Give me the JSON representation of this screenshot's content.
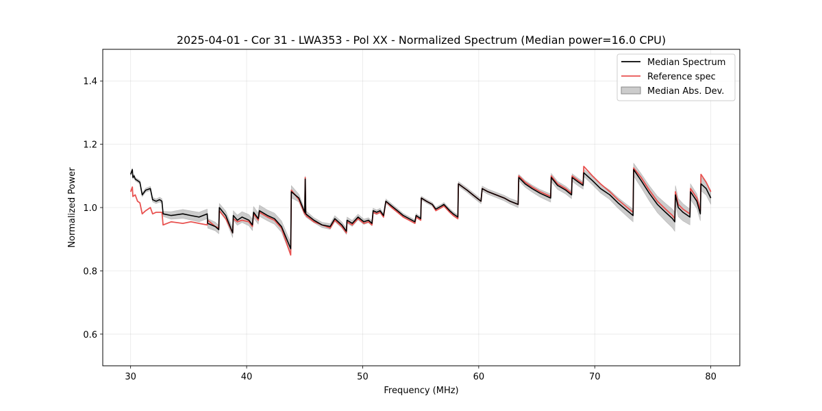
{
  "chart_data": {
    "type": "line",
    "title": "2025-04-01 - Cor 31 - LWA353 - Pol XX - Normalized Spectrum (Median power=16.0 CPU)",
    "xlabel": "Frequency (MHz)",
    "ylabel": "Normalized Power",
    "xlim": [
      27.6,
      82.5
    ],
    "ylim": [
      0.5,
      1.5
    ],
    "xticks": [
      30,
      40,
      50,
      60,
      70,
      80
    ],
    "yticks": [
      0.6,
      0.8,
      1.0,
      1.2,
      1.4
    ],
    "xtick_labels": [
      "30",
      "40",
      "50",
      "60",
      "70",
      "80"
    ],
    "ytick_labels": [
      "0.6",
      "0.8",
      "1.0",
      "1.2",
      "1.4"
    ],
    "grid": true,
    "legend_position": "top-right",
    "colors": {
      "median": "#000000",
      "reference": "#e8514f",
      "mad_band": "#999999"
    },
    "series": [
      {
        "name": "Median Spectrum",
        "x": [
          30.0,
          30.15,
          30.2,
          30.3,
          30.4,
          30.6,
          30.8,
          31.0,
          31.3,
          31.7,
          31.9,
          32.2,
          32.5,
          32.7,
          32.8,
          33.5,
          34.5,
          35.2,
          35.9,
          36.6,
          36.65,
          37.3,
          37.6,
          37.65,
          38.2,
          38.8,
          38.85,
          39.2,
          39.6,
          40.2,
          40.5,
          40.6,
          41.0,
          41.1,
          41.8,
          42.4,
          43.0,
          43.8,
          43.85,
          44.5,
          45.0,
          45.05,
          45.1,
          45.8,
          46.5,
          47.2,
          47.6,
          48.2,
          48.6,
          48.65,
          49.1,
          49.6,
          50.1,
          50.5,
          50.8,
          50.9,
          51.2,
          51.5,
          51.8,
          52.0,
          52.5,
          53.0,
          53.5,
          54.0,
          54.5,
          54.6,
          55.0,
          55.05,
          55.5,
          56.0,
          56.3,
          56.8,
          57.0,
          57.5,
          57.8,
          58.2,
          58.25,
          59.0,
          59.5,
          60.2,
          60.3,
          60.8,
          61.5,
          62.2,
          62.7,
          63.4,
          63.45,
          64.0,
          64.6,
          65.3,
          66.2,
          66.25,
          66.8,
          67.5,
          68.0,
          68.05,
          68.6,
          69.0,
          69.05,
          69.8,
          70.5,
          71.3,
          72.0,
          72.8,
          73.3,
          73.35,
          74.0,
          74.7,
          75.4,
          76.1,
          76.7,
          76.9,
          76.95,
          77.2,
          77.6,
          78.2,
          78.25,
          78.8,
          79.1,
          79.15,
          79.6,
          80.0
        ],
        "values": [
          1.105,
          1.12,
          1.095,
          1.1,
          1.09,
          1.085,
          1.08,
          1.04,
          1.055,
          1.06,
          1.025,
          1.02,
          1.025,
          1.02,
          0.98,
          0.975,
          0.98,
          0.975,
          0.97,
          0.98,
          0.95,
          0.94,
          0.93,
          1.0,
          0.975,
          0.92,
          0.975,
          0.96,
          0.97,
          0.96,
          0.945,
          0.985,
          0.965,
          0.99,
          0.975,
          0.965,
          0.94,
          0.87,
          1.05,
          1.03,
          0.985,
          1.09,
          0.98,
          0.96,
          0.945,
          0.94,
          0.965,
          0.945,
          0.925,
          0.96,
          0.95,
          0.97,
          0.955,
          0.96,
          0.95,
          0.99,
          0.985,
          0.99,
          0.975,
          1.02,
          1.005,
          0.99,
          0.975,
          0.965,
          0.955,
          0.975,
          0.965,
          1.03,
          1.02,
          1.01,
          0.995,
          1.005,
          1.01,
          0.99,
          0.98,
          0.97,
          1.075,
          1.055,
          1.04,
          1.02,
          1.06,
          1.05,
          1.04,
          1.03,
          1.02,
          1.01,
          1.095,
          1.075,
          1.06,
          1.045,
          1.03,
          1.095,
          1.07,
          1.055,
          1.04,
          1.095,
          1.08,
          1.07,
          1.11,
          1.085,
          1.06,
          1.04,
          1.015,
          0.99,
          0.975,
          1.12,
          1.085,
          1.045,
          1.01,
          0.985,
          0.965,
          0.955,
          1.04,
          1.0,
          0.985,
          0.97,
          1.05,
          1.02,
          0.98,
          1.075,
          1.06,
          1.03
        ]
      },
      {
        "name": "Reference spec",
        "x": [
          30.0,
          30.15,
          30.2,
          30.4,
          30.6,
          30.8,
          31.0,
          31.3,
          31.7,
          31.9,
          32.2,
          32.5,
          32.7,
          32.8,
          33.5,
          34.5,
          35.2,
          35.9,
          36.6,
          36.65,
          37.3,
          37.6,
          37.65,
          38.2,
          38.8,
          38.85,
          39.2,
          39.6,
          40.2,
          40.5,
          40.6,
          41.0,
          41.1,
          41.8,
          42.4,
          43.0,
          43.8,
          43.85,
          44.5,
          45.0,
          45.05,
          45.1,
          45.8,
          46.5,
          47.2,
          47.6,
          48.2,
          48.6,
          48.65,
          49.1,
          49.6,
          50.1,
          50.5,
          50.8,
          50.9,
          51.2,
          51.5,
          51.8,
          52.0,
          52.5,
          53.0,
          53.5,
          54.0,
          54.5,
          54.6,
          55.0,
          55.05,
          55.5,
          56.0,
          56.3,
          56.8,
          57.0,
          57.5,
          57.8,
          58.2,
          58.25,
          59.0,
          59.5,
          60.2,
          60.3,
          60.8,
          61.5,
          62.2,
          62.7,
          63.4,
          63.45,
          64.0,
          64.6,
          65.3,
          66.2,
          66.25,
          66.8,
          67.5,
          68.0,
          68.05,
          68.6,
          69.0,
          69.05,
          69.8,
          70.5,
          71.3,
          72.0,
          72.8,
          73.3,
          73.35,
          74.0,
          74.7,
          75.4,
          76.1,
          76.7,
          76.9,
          76.95,
          77.2,
          77.6,
          78.2,
          78.25,
          78.8,
          79.1,
          79.15,
          79.6,
          80.0
        ],
        "values": [
          1.05,
          1.065,
          1.035,
          1.04,
          1.02,
          1.015,
          0.98,
          0.99,
          1.0,
          0.98,
          0.985,
          0.985,
          0.985,
          0.945,
          0.955,
          0.95,
          0.955,
          0.95,
          0.945,
          0.96,
          0.94,
          0.935,
          0.99,
          0.965,
          0.92,
          0.965,
          0.955,
          0.96,
          0.955,
          0.94,
          0.98,
          0.96,
          0.985,
          0.97,
          0.96,
          0.935,
          0.85,
          1.055,
          1.025,
          0.98,
          1.095,
          0.975,
          0.955,
          0.945,
          0.935,
          0.96,
          0.94,
          0.92,
          0.955,
          0.945,
          0.965,
          0.95,
          0.955,
          0.945,
          0.985,
          0.98,
          0.985,
          0.97,
          1.02,
          1.0,
          0.985,
          0.97,
          0.96,
          0.95,
          0.97,
          0.96,
          1.03,
          1.02,
          1.01,
          0.99,
          1.0,
          1.005,
          0.985,
          0.975,
          0.965,
          1.075,
          1.055,
          1.04,
          1.02,
          1.06,
          1.05,
          1.04,
          1.03,
          1.02,
          1.01,
          1.1,
          1.08,
          1.065,
          1.05,
          1.035,
          1.1,
          1.075,
          1.06,
          1.045,
          1.1,
          1.085,
          1.075,
          1.13,
          1.1,
          1.075,
          1.05,
          1.025,
          1.0,
          0.985,
          1.125,
          1.095,
          1.055,
          1.02,
          0.995,
          0.975,
          0.965,
          1.05,
          1.01,
          0.995,
          0.98,
          1.06,
          1.03,
          0.99,
          1.105,
          1.08,
          1.05
        ]
      }
    ],
    "band": {
      "name": "Median Abs. Dev.",
      "x": [
        30.0,
        32.8,
        33.5,
        34.5,
        35.9,
        36.6,
        37.6,
        38.8,
        39.6,
        40.5,
        41.8,
        43.0,
        43.8,
        44.5,
        45.8,
        47.2,
        48.6,
        50.5,
        52.0,
        54.5,
        56.8,
        58.2,
        60.2,
        62.7,
        63.4,
        65.3,
        66.2,
        68.0,
        69.0,
        71.3,
        73.3,
        74.7,
        76.1,
        76.9,
        78.2,
        79.1,
        80.0
      ],
      "half_width": [
        0.005,
        0.008,
        0.012,
        0.014,
        0.015,
        0.015,
        0.013,
        0.015,
        0.017,
        0.018,
        0.017,
        0.018,
        0.02,
        0.012,
        0.008,
        0.009,
        0.01,
        0.008,
        0.007,
        0.006,
        0.006,
        0.007,
        0.008,
        0.009,
        0.01,
        0.012,
        0.013,
        0.012,
        0.012,
        0.015,
        0.02,
        0.024,
        0.028,
        0.03,
        0.025,
        0.022,
        0.02
      ]
    }
  }
}
